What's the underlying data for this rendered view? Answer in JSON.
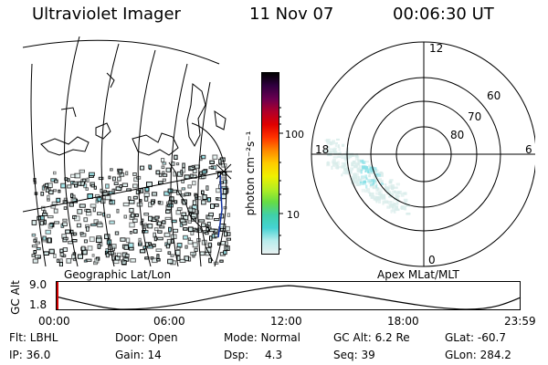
{
  "header": {
    "instrument": "Ultraviolet Imager",
    "date": "11 Nov 07",
    "time": "00:06:30 UT"
  },
  "colorbar": {
    "unit_label": "photon cm⁻²s⁻¹",
    "ticks": [
      "100",
      "10"
    ],
    "colors": [
      "#e6f0f0",
      "#b8ecec",
      "#45d3d3",
      "#40d0a8",
      "#66dd44",
      "#b4ee22",
      "#f0f000",
      "#ffcc00",
      "#ff8800",
      "#ff3300",
      "#e00000",
      "#b0002a",
      "#6a0050",
      "#300040",
      "#000000"
    ]
  },
  "geo_map": {
    "label": "Geographic Lat/Lon",
    "aurora_color": "#d8ecea",
    "aurora_accent": "#88e0e6"
  },
  "polar_plot": {
    "label": "Apex MLat/MLT",
    "lat_labels": [
      "60",
      "70",
      "80"
    ],
    "mlt_labels": {
      "top": "12",
      "left": "18",
      "right": "6",
      "bottom": "0"
    }
  },
  "altitude_plot": {
    "ylabel": "GC Alt",
    "yticks": [
      "9.0",
      "1.8"
    ],
    "xticks": [
      "00:00",
      "06:00",
      "12:00",
      "18:00",
      "23:59"
    ],
    "marker_color": "#d00000"
  },
  "info_panel": {
    "flt": "Flt: LBHL",
    "door": "Door: Open",
    "mode": "Mode: Normal",
    "gc_alt": "GC Alt: 6.2 Re",
    "glat": "GLat: -60.7",
    "ip": "IP: 36.0",
    "gain": "Gain: 14",
    "dsp_label": "Dsp:",
    "dsp_value": "4.3",
    "seq": "Seq: 39",
    "glon": "GLon: 284.2"
  }
}
